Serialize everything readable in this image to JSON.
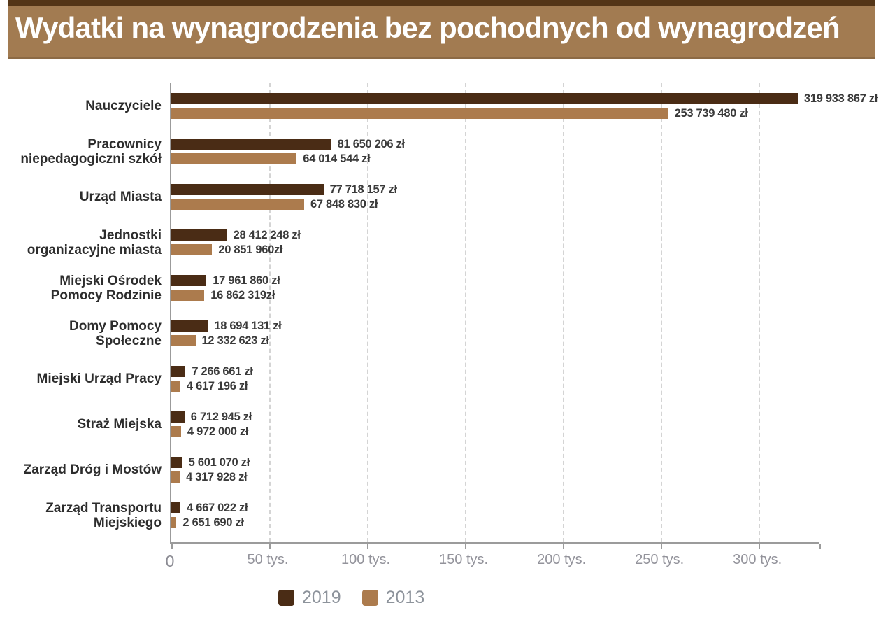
{
  "title": "Wydatki na wynagrodzenia bez pochodnych od wynagrodzeń",
  "colors": {
    "banner_bg": "#a27b51",
    "banner_top_strip": "#543517",
    "series_2019": "#4a2c15",
    "series_2013": "#ac7b4d",
    "grid": "#d4d4d4",
    "axis": "#9b9b9b"
  },
  "chart_data": {
    "type": "bar",
    "orientation": "horizontal",
    "title": "Wydatki na wynagrodzenia bez pochodnych od wynagrodzeń",
    "xlabel": "",
    "ylabel": "",
    "unit": "zł",
    "axis_unit": "tys. (thousands of zł)",
    "grid": "vertical dashed",
    "legend_position": "bottom",
    "x_max": 331000000,
    "x_ticks": [
      {
        "value": 0,
        "label": "0"
      },
      {
        "value": 50000000,
        "label": "50 tys."
      },
      {
        "value": 100000000,
        "label": "100 tys."
      },
      {
        "value": 150000000,
        "label": "150 tys."
      },
      {
        "value": 200000000,
        "label": "200 tys."
      },
      {
        "value": 250000000,
        "label": "250 tys."
      },
      {
        "value": 300000000,
        "label": "300 tys."
      }
    ],
    "categories": [
      [
        "Nauczyciele"
      ],
      [
        "Pracownicy",
        "niepedagogiczni szkół"
      ],
      [
        "Urząd Miasta"
      ],
      [
        "Jednostki",
        "organizacyjne miasta"
      ],
      [
        "Miejski Ośrodek",
        "Pomocy Rodzinie"
      ],
      [
        "Domy Pomocy",
        "Społeczne"
      ],
      [
        "Miejski Urząd Pracy"
      ],
      [
        "Straż Miejska"
      ],
      [
        "Zarząd Dróg i Mostów"
      ],
      [
        "Zarząd Transportu",
        "Miejskiego"
      ]
    ],
    "series": [
      {
        "name": "2019",
        "color": "#4a2c15",
        "values": [
          319933867,
          81650206,
          77718157,
          28412248,
          17961860,
          18694131,
          7266661,
          6712945,
          5601070,
          4667022
        ],
        "value_labels": [
          "319 933 867 zł",
          "81 650 206 zł",
          "77 718 157 zł",
          "28 412 248 zł",
          "17 961 860 zł",
          "18 694 131 zł",
          "7 266 661 zł",
          "6 712 945 zł",
          "5 601 070 zł",
          "4 667 022 zł"
        ]
      },
      {
        "name": "2013",
        "color": "#ac7b4d",
        "values": [
          253739480,
          64014544,
          67848830,
          20851960,
          16862319,
          12332623,
          4617196,
          4972000,
          4317928,
          2651690
        ],
        "value_labels": [
          "253 739 480 zł",
          "64 014 544 zł",
          "67 848 830 zł",
          "20 851 960zł",
          "16 862 319zł",
          "12 332 623 zł",
          "4 617 196 zł",
          "4 972 000 zł",
          "4 317 928 zł",
          "2 651 690 zł"
        ]
      }
    ]
  }
}
